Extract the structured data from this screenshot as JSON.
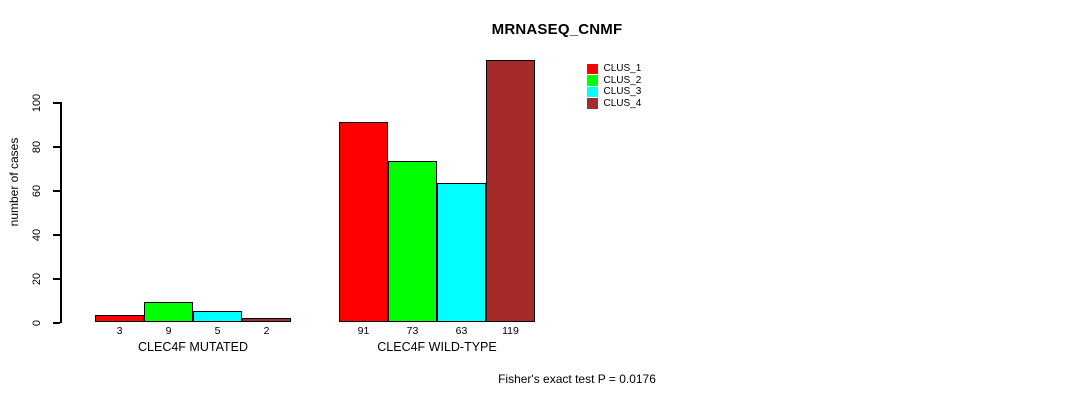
{
  "chart_data": {
    "type": "bar",
    "title": "MRNASEQ_CNMF",
    "ylabel": "number of cases",
    "annotation": "Fisher's exact test P = 0.0176",
    "categories": [
      "CLEC4F MUTATED",
      "CLEC4F WILD-TYPE"
    ],
    "series": [
      {
        "name": "CLUS_1",
        "color": "#FF0000",
        "values": [
          3,
          91
        ]
      },
      {
        "name": "CLUS_2",
        "color": "#00FF00",
        "values": [
          9,
          73
        ]
      },
      {
        "name": "CLUS_3",
        "color": "#00FFFF",
        "values": [
          5,
          63
        ]
      },
      {
        "name": "CLUS_4",
        "color": "#A52A2A",
        "values": [
          2,
          119
        ]
      }
    ],
    "yticks": [
      0,
      20,
      40,
      60,
      80,
      100
    ],
    "ylim": [
      0,
      120
    ],
    "bar_value_labels_shown": true,
    "legend_position": "top-right",
    "grid": false,
    "background_color": "#ffffff",
    "bar_border_color": "#000000"
  }
}
